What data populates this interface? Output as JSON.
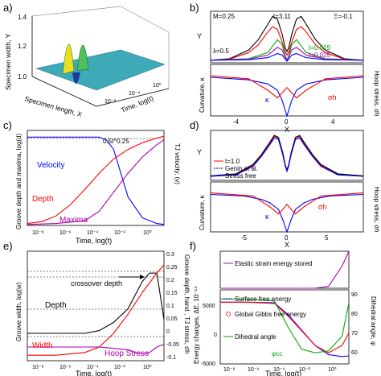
{
  "panel_labels": [
    "a)",
    "b)",
    "c)",
    "d)",
    "e)",
    "f)"
  ],
  "chart_data": [
    {
      "panel": "a)",
      "type": "surface3d",
      "zlabel": "Specimen width, Y",
      "xlabel": "Specimen length, X",
      "ylabel": "Time, log(t)",
      "z_ticks": [
        "1.0",
        "1.2",
        "1.4"
      ],
      "t_ticks": [
        "10⁻⁸",
        "10⁻⁴",
        "10⁰"
      ]
    },
    {
      "panel": "b)",
      "type": "line",
      "params": {
        "M": "M=0.25",
        "t": "t=3.11",
        "Xi": "Ξ=-0.1",
        "lambda": "λ=0.5"
      },
      "top": {
        "ylabel": "Y",
        "series": [
          {
            "name": "t=3.11",
            "color": "#000000",
            "x": [
              -8,
              -6,
              -4,
              -3,
              -2,
              -1.5,
              -1,
              -0.5,
              -0.2,
              0,
              0.2,
              0.5,
              1,
              1.5,
              2,
              3,
              4,
              6,
              8
            ],
            "y": [
              0.05,
              0.08,
              0.25,
              0.45,
              0.75,
              0.9,
              0.85,
              0.55,
              0.3,
              0.22,
              0.3,
              0.55,
              0.85,
              0.9,
              0.75,
              0.45,
              0.25,
              0.08,
              0.05
            ]
          },
          {
            "name": "",
            "color": "#ff0000",
            "x": [
              -8,
              -6,
              -4,
              -3,
              -2,
              -1.5,
              -1,
              -0.5,
              -0.2,
              0,
              0.2,
              0.5,
              1,
              1.5,
              2,
              3,
              4,
              6,
              8
            ],
            "y": [
              0.05,
              0.07,
              0.2,
              0.35,
              0.6,
              0.7,
              0.65,
              0.4,
              0.22,
              0.15,
              0.22,
              0.4,
              0.65,
              0.7,
              0.6,
              0.35,
              0.2,
              0.07,
              0.05
            ]
          },
          {
            "name": "t=0.019",
            "color": "#00aa00",
            "x": [
              -8,
              -4,
              -2,
              -1,
              -0.5,
              -0.2,
              0,
              0.2,
              0.5,
              1,
              2,
              4,
              8
            ],
            "y": [
              0.05,
              0.08,
              0.2,
              0.45,
              0.35,
              0.15,
              0.05,
              0.15,
              0.35,
              0.45,
              0.2,
              0.08,
              0.05
            ]
          },
          {
            "name": "t=0.025",
            "color": "#aa00aa",
            "x": [
              -8,
              -4,
              -2,
              -1,
              -0.5,
              -0.2,
              0,
              0.2,
              0.5,
              1,
              2,
              4,
              8
            ],
            "y": [
              0.05,
              0.07,
              0.15,
              0.3,
              0.25,
              0.12,
              0.05,
              0.12,
              0.25,
              0.3,
              0.15,
              0.07,
              0.05
            ]
          },
          {
            "name": "",
            "color": "#0000ff",
            "x": [
              -8,
              -4,
              -2,
              -1,
              -0.5,
              -0.2,
              0,
              0.2,
              0.5,
              1,
              2,
              4,
              8
            ],
            "y": [
              0.05,
              0.06,
              0.1,
              0.18,
              0.15,
              0.08,
              0.03,
              0.08,
              0.15,
              0.18,
              0.1,
              0.06,
              0.05
            ]
          }
        ]
      },
      "bottom": {
        "ylabel": "Curvature, κ",
        "y2label": "Hoop stress, σh",
        "xlabel": "X",
        "x_ticks": [
          "-4",
          "0",
          "4"
        ],
        "series": [
          {
            "name": "κ",
            "color": "#0000ff",
            "x": [
              -8,
              -4,
              -2,
              -1,
              -0.5,
              -0.2,
              0,
              0.2,
              0.5,
              1,
              2,
              4,
              8
            ],
            "y": [
              0.75,
              0.7,
              0.62,
              0.5,
              0.3,
              0.12,
              0.0,
              0.12,
              0.3,
              0.5,
              0.62,
              0.7,
              0.75
            ]
          },
          {
            "name": "σh",
            "color": "#ff0000",
            "x": [
              -8,
              -4,
              -2,
              -1,
              -0.5,
              0,
              0.5,
              1,
              2,
              4,
              8
            ],
            "y": [
              0.78,
              0.72,
              0.5,
              0.35,
              0.45,
              0.55,
              0.45,
              0.35,
              0.5,
              0.72,
              0.78
            ]
          }
        ]
      }
    },
    {
      "panel": "c)",
      "type": "line",
      "ylabel": "Groove depth and maxima, log(d)",
      "y2label": "TJ velocity, (v)",
      "xlabel": "Time, log(t)",
      "x_ticks": [
        "10⁻⁸",
        "10⁻⁶",
        "10⁻⁴",
        "10⁻²",
        "10⁰"
      ],
      "annotation": "0.5t^0.25",
      "series": [
        {
          "name": "Velocity",
          "color": "#0000ff",
          "x": [
            -9,
            -8,
            -7,
            -6,
            -5,
            -4,
            -3.5,
            -3,
            -2.5,
            -2,
            -1,
            0,
            0.5
          ],
          "y": [
            0.93,
            0.93,
            0.93,
            0.93,
            0.93,
            0.93,
            0.9,
            0.8,
            0.55,
            0.3,
            0.08,
            0.02,
            0.01
          ]
        },
        {
          "name": "Depth",
          "color": "#ff0000",
          "x": [
            -9,
            -8,
            -7,
            -6,
            -5,
            -4,
            -3,
            -2,
            -1,
            0,
            0.5
          ],
          "y": [
            0.02,
            0.04,
            0.1,
            0.22,
            0.38,
            0.55,
            0.7,
            0.8,
            0.87,
            0.92,
            0.94
          ]
        },
        {
          "name": "Maxima",
          "color": "#aa00aa",
          "x": [
            -9,
            -7,
            -5,
            -4,
            -3,
            -2,
            -1,
            0,
            0.5
          ],
          "y": [
            0.01,
            0.02,
            0.05,
            0.15,
            0.35,
            0.55,
            0.72,
            0.85,
            0.9
          ]
        }
      ]
    },
    {
      "panel": "d)",
      "type": "line",
      "top": {
        "ylabel": "Y",
        "series": [
          {
            "name": "t=1.0",
            "color": "#ff0000",
            "x": [
              -9,
              -6,
              -4,
              -3,
              -2,
              -1.5,
              -1,
              -0.5,
              -0.2,
              0,
              0.2,
              0.5,
              1,
              1.5,
              2,
              3,
              4,
              6,
              9
            ],
            "y": [
              0.08,
              0.12,
              0.3,
              0.5,
              0.75,
              0.88,
              0.85,
              0.55,
              0.3,
              0.2,
              0.3,
              0.55,
              0.85,
              0.88,
              0.75,
              0.5,
              0.3,
              0.12,
              0.08
            ]
          },
          {
            "name": "Genin et al.",
            "color": "#000000",
            "x": [
              -9,
              -6,
              -4,
              -3,
              -2,
              -1.5,
              -1,
              -0.5,
              -0.2,
              0,
              0.2,
              0.5,
              1,
              1.5,
              2,
              3,
              4,
              6,
              9
            ],
            "y": [
              0.09,
              0.13,
              0.32,
              0.52,
              0.77,
              0.9,
              0.86,
              0.56,
              0.31,
              0.21,
              0.31,
              0.56,
              0.86,
              0.9,
              0.77,
              0.52,
              0.32,
              0.13,
              0.09
            ]
          },
          {
            "name": "Stress free",
            "color": "#0000ff",
            "x": [
              -9,
              -6,
              -4,
              -3,
              -2,
              -1.5,
              -1,
              -0.5,
              -0.2,
              0,
              0.2,
              0.5,
              1,
              1.5,
              2,
              3,
              4,
              6,
              9
            ],
            "y": [
              0.08,
              0.11,
              0.28,
              0.48,
              0.72,
              0.85,
              0.82,
              0.52,
              0.28,
              0.18,
              0.28,
              0.52,
              0.82,
              0.85,
              0.72,
              0.48,
              0.28,
              0.11,
              0.08
            ]
          }
        ]
      },
      "bottom": {
        "ylabel": "Curvature, κ",
        "y2label": "Hoop stress, σh",
        "xlabel": "X",
        "x_ticks": [
          "-5",
          "0",
          "5"
        ],
        "series": [
          {
            "name": "κ",
            "color": "#0000ff",
            "x": [
              -9,
              -5,
              -3,
              -2,
              -1,
              -0.5,
              -0.2,
              0,
              0.2,
              0.5,
              1,
              2,
              3,
              5,
              9
            ],
            "y": [
              0.75,
              0.72,
              0.65,
              0.58,
              0.45,
              0.25,
              0.1,
              0.0,
              0.1,
              0.25,
              0.45,
              0.58,
              0.65,
              0.72,
              0.75
            ]
          },
          {
            "name": "σh",
            "color": "#ff0000",
            "x": [
              -9,
              -4,
              -2,
              -1,
              -0.5,
              0,
              0.5,
              1,
              2,
              4,
              9
            ],
            "y": [
              0.78,
              0.72,
              0.5,
              0.36,
              0.45,
              0.55,
              0.45,
              0.36,
              0.5,
              0.72,
              0.78
            ]
          }
        ]
      }
    },
    {
      "panel": "e)",
      "type": "line",
      "ylabel": "Groove width, log(w)",
      "y2label": "Groove depth, hand , TJ stress, σh",
      "xlabel": "Time, log(t)",
      "x_ticks": [
        "10⁻⁸",
        "10⁻⁶",
        "10⁻⁴",
        "10⁻²",
        "10⁰"
      ],
      "y2_ticks": [
        "0.3",
        "0.25",
        "0.2",
        "0.15",
        "0.1",
        "0.05",
        "0",
        "-0.05",
        "-0.1"
      ],
      "annotations": [
        "crossover depth"
      ],
      "series": [
        {
          "name": "Depth",
          "color": "#000000",
          "x": [
            -9,
            -7,
            -5,
            -4,
            -3,
            -2,
            -1.5,
            -1,
            -0.5,
            0,
            0.3,
            0.5
          ],
          "y": [
            0.0,
            0.0,
            0.0,
            0.01,
            0.04,
            0.09,
            0.14,
            0.19,
            0.22,
            0.22,
            0.12,
            0.05
          ]
        },
        {
          "name": "Width",
          "color": "#ff0000",
          "x": [
            -9,
            -7,
            -5,
            -4,
            -3,
            -2,
            -1,
            0,
            0.5
          ],
          "y": [
            -0.08,
            -0.08,
            -0.07,
            -0.05,
            0.0,
            0.07,
            0.15,
            0.22,
            0.25
          ]
        },
        {
          "name": "Hoop Stress",
          "color": "#aa00aa",
          "x": [
            -9,
            -7,
            -5,
            -4,
            -3,
            -2,
            -1.5,
            -1,
            -0.5,
            0,
            0.5
          ],
          "y": [
            -0.05,
            -0.05,
            -0.05,
            -0.05,
            -0.055,
            -0.06,
            -0.07,
            -0.075,
            -0.07,
            -0.05,
            -0.04
          ]
        }
      ]
    },
    {
      "panel": "f)",
      "type": "line",
      "top": {
        "series": [
          {
            "name": "Elastic strain energy stored",
            "color": "#aa00aa",
            "x": [
              -9,
              -6,
              -4,
              -2,
              -1,
              0,
              0.5
            ],
            "y": [
              0,
              0,
              0,
              0,
              0.05,
              0.6,
              1.0
            ]
          }
        ]
      },
      "bottom": {
        "ylabel": "Energy changes, ΔE, 10⁻¹⁴",
        "y2label": "Dihedral angle, φ",
        "xlabel": "Time, log(t)",
        "x_ticks": [
          "10⁻⁸",
          "10⁻⁶",
          "10⁻⁴",
          "10⁻²",
          "10⁰"
        ],
        "y_ticks": [
          "5000",
          "0",
          "-5000"
        ],
        "y2_ticks": [
          "90",
          "80",
          "70",
          "60"
        ],
        "annotation": "φcc",
        "series": [
          {
            "name": "Surface free energy",
            "color": "#0000ff",
            "x": [
              -9,
              -7,
              -5,
              -4,
              -3,
              -2,
              -1,
              0,
              0.5
            ],
            "y": [
              5000,
              5000,
              4900,
              3000,
              500,
              -2000,
              -3500,
              -3800,
              -3700
            ]
          },
          {
            "name": "Global Gibbs free energy",
            "color": "#ff0000",
            "x": [
              -9,
              -7,
              -5,
              -4,
              -3,
              -2,
              -1,
              0,
              0.5
            ],
            "y": [
              5000,
              5000,
              4800,
              2800,
              400,
              -2000,
              -3200,
              -2000,
              0
            ]
          },
          {
            "name": "Dihedral angle",
            "color": "#00aa00",
            "x": [
              -9,
              -7,
              -5,
              -4,
              -3,
              -2,
              -1,
              0,
              0.5
            ],
            "y": [
              90,
              90,
              89,
              75,
              63,
              61,
              62,
              70,
              88
            ]
          }
        ]
      }
    }
  ]
}
